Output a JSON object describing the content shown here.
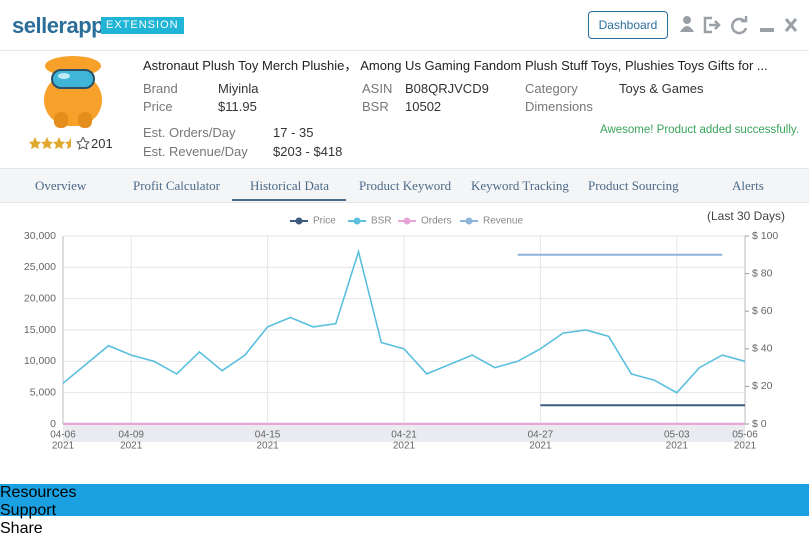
{
  "header": {
    "logo": "sellerapp",
    "badge": "EXTENSION",
    "button": "Dashboard"
  },
  "product": {
    "title": "Astronaut Plush Toy Merch Plushie， Among Us Gaming Fandom Plush Stuff Toys, Plushies Toys Gifts for ...",
    "review_count": "201",
    "fields": [
      {
        "label": "Brand",
        "value": "Miyinla"
      },
      {
        "label": "Price",
        "value": "$11.95"
      },
      {
        "label": "ASIN",
        "value": "B08QRJVCD9"
      },
      {
        "label": "BSR",
        "value": "10502"
      },
      {
        "label": "Category",
        "value": "Toys & Games"
      },
      {
        "label": "Dimensions"
      },
      {
        "label": "Est. Orders/Day",
        "value": "17 - 35"
      },
      {
        "label": "Est. Revenue/Day",
        "value": "$203 - $418"
      }
    ],
    "message": "Awesome! Product added successfully."
  },
  "tabs": [
    "Overview",
    "Profit Calculator",
    "Historical Data",
    "Product Keyword",
    "Keyword Tracking",
    "Product Sourcing",
    "Alerts"
  ],
  "chart": {
    "type": "line",
    "period": "(Last 30 Days)",
    "x": [
      "2021-04-06",
      "2021-04-07",
      "2021-04-08",
      "2021-04-09",
      "2021-04-10",
      "2021-04-11",
      "2021-04-12",
      "2021-04-13",
      "2021-04-14",
      "2021-04-15",
      "2021-04-16",
      "2021-04-17",
      "2021-04-18",
      "2021-04-19",
      "2021-04-20",
      "2021-04-21",
      "2021-04-22",
      "2021-04-23",
      "2021-04-24",
      "2021-04-25",
      "2021-04-26",
      "2021-04-27",
      "2021-04-28",
      "2021-04-29",
      "2021-04-30",
      "2021-05-01",
      "2021-05-02",
      "2021-05-03",
      "2021-05-04",
      "2021-05-05",
      "2021-05-06"
    ],
    "xlim": [
      "2021-04-06",
      "2021-05-06"
    ],
    "xticks": [
      {
        "value": "2021-04-06",
        "label": "04-06",
        "year": "2021"
      },
      {
        "value": "2021-04-09",
        "label": "04-09",
        "year": "2021"
      },
      {
        "value": "2021-04-15",
        "label": "04-15",
        "year": "2021"
      },
      {
        "value": "2021-04-21",
        "label": "04-21",
        "year": "2021"
      },
      {
        "value": "2021-04-27",
        "label": "04-27",
        "year": "2021"
      },
      {
        "value": "2021-05-03",
        "label": "05-03",
        "year": "2021"
      },
      {
        "value": "2021-05-06",
        "label": "05-06",
        "year": "2021"
      }
    ],
    "ylim": [
      0,
      30000
    ],
    "yticks": [
      0,
      {
        "value": 5000,
        "label": "5,000"
      },
      {
        "value": 10000,
        "label": "10,000"
      },
      {
        "value": 15000,
        "label": "15,000"
      },
      {
        "value": 20000,
        "label": "20,000"
      },
      {
        "value": 25000,
        "label": "25,000"
      },
      {
        "value": 30000,
        "label": "30,000"
      }
    ],
    "y2lim": [
      0,
      100
    ],
    "y2ticks": [
      {
        "value": 0,
        "label": "$ 0"
      },
      {
        "value": 20,
        "label": "$ 20"
      },
      {
        "value": 40,
        "label": "$ 40"
      },
      {
        "value": 60,
        "label": "$ 60"
      },
      {
        "value": 80,
        "label": "$ 80"
      },
      {
        "value": 100,
        "label": "$ 100"
      }
    ],
    "grid": true,
    "series": [
      {
        "name": "Price",
        "color": "#3d5a80",
        "axis": "y2",
        "values": [
          null,
          null,
          null,
          null,
          null,
          null,
          null,
          null,
          null,
          null,
          null,
          null,
          null,
          null,
          null,
          null,
          null,
          null,
          null,
          null,
          null,
          10,
          10,
          10,
          10,
          10,
          10,
          10,
          10,
          10,
          10
        ]
      },
      {
        "name": "BSR",
        "color": "#5bc0de",
        "values": [
          6500,
          9500,
          12500,
          11000,
          10000,
          8000,
          11500,
          8500,
          11000,
          15500,
          17000,
          15500,
          16000,
          27500,
          13000,
          12000,
          8000,
          9500,
          11000,
          9000,
          10000,
          12000,
          14500,
          15000,
          14000,
          8000,
          7000,
          5000,
          9000,
          11000,
          10000
        ]
      },
      {
        "name": "Orders",
        "color": "#e8a6d8",
        "axis": "y2",
        "values": [
          0,
          0,
          0,
          0,
          0,
          0,
          0,
          0,
          0,
          0,
          0,
          0,
          0,
          0,
          0,
          0,
          0,
          0,
          0,
          0,
          0,
          0,
          0,
          0,
          0,
          0,
          0,
          0,
          0,
          0,
          0
        ]
      },
      {
        "name": "Revenue",
        "color": "#8fb4d9",
        "axis": "y2",
        "values": [
          null,
          null,
          null,
          null,
          null,
          null,
          null,
          null,
          null,
          null,
          null,
          null,
          null,
          null,
          null,
          null,
          null,
          null,
          null,
          null,
          90,
          90,
          90,
          90,
          90,
          90,
          90,
          90,
          90,
          90,
          null
        ]
      }
    ]
  },
  "footer": {
    "links": [
      "Resources",
      "Support",
      "Share"
    ]
  }
}
